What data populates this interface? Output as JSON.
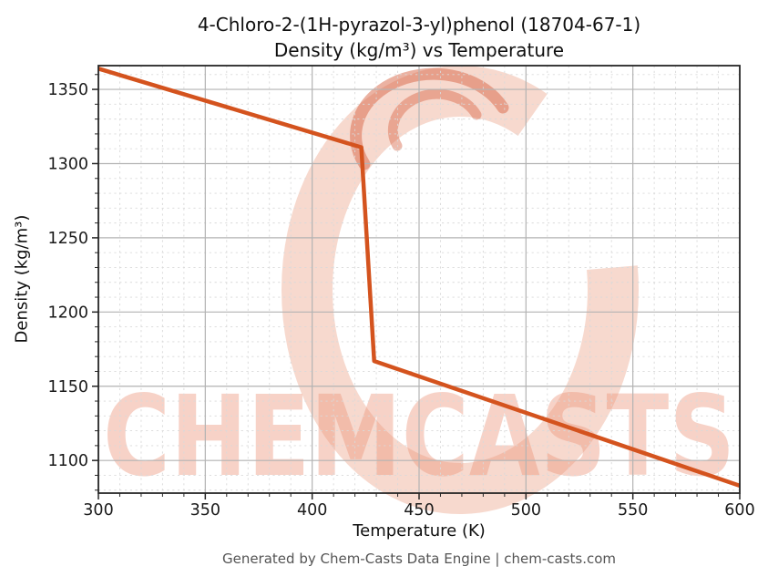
{
  "header": {
    "title_line1": "4-Chloro-2-(1H-pyrazol-3-yl)phenol (18704-67-1)",
    "title_line2": "Density (kg/m³) vs Temperature"
  },
  "footer": {
    "text": "Generated by Chem-Casts Data Engine | chem-casts.com"
  },
  "watermark": {
    "text": "CHEMCASTS",
    "text_color": "#ec9176",
    "ring_color": "#f0b39e",
    "swirl_color": "#d86546"
  },
  "colors": {
    "line": "#d4531e",
    "major_grid": "#b3b3b3",
    "minor_grid": "#d9d9d9",
    "spine": "#262626",
    "tick_label": "#1a1a1a"
  },
  "chart_data": {
    "type": "line",
    "title": "4-Chloro-2-(1H-pyrazol-3-yl)phenol (18704-67-1) Density (kg/m³) vs Temperature",
    "xlabel": "Temperature (K)",
    "ylabel": "Density (kg/m³)",
    "xlim": [
      300,
      600
    ],
    "ylim": [
      1078,
      1366
    ],
    "x_major_ticks": [
      300,
      350,
      400,
      450,
      500,
      550,
      600
    ],
    "y_major_ticks": [
      1100,
      1150,
      1200,
      1250,
      1300,
      1350
    ],
    "minor_tick_step_x": 10,
    "minor_tick_step_y": 10,
    "grid": {
      "major": true,
      "minor": true
    },
    "legend_position": "none",
    "series": [
      {
        "name": "Density (kg/m³)",
        "color": "#d4531e",
        "points": [
          [
            300,
            1364
          ],
          [
            423,
            1311
          ],
          [
            429,
            1167
          ],
          [
            600,
            1083
          ]
        ]
      }
    ]
  }
}
